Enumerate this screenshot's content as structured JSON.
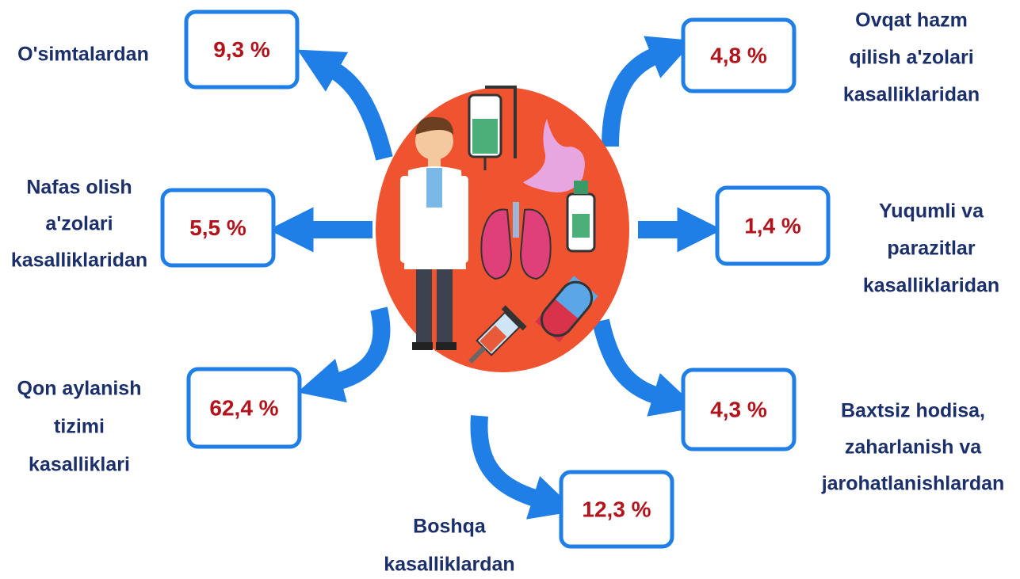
{
  "items": [
    {
      "label": [
        "O'simtalardan"
      ],
      "value": "9,3 %"
    },
    {
      "label": [
        "Nafas olish",
        "a'zolari",
        "kasalliklaridan"
      ],
      "value": "5,5 %"
    },
    {
      "label": [
        "Qon aylanish",
        "tizimi",
        "kasalliklari"
      ],
      "value": "62,4 %"
    },
    {
      "label": [
        "Boshqa",
        "kasalliklardan"
      ],
      "value": "12,3 %"
    },
    {
      "label": [
        "Ovqat hazm",
        "qilish a'zolari",
        "kasalliklaridan"
      ],
      "value": "4,8 %"
    },
    {
      "label": [
        "Yuqumli va",
        "parazitlar",
        "kasalliklaridan"
      ],
      "value": "1,4 %"
    },
    {
      "label": [
        "Baxtsiz hodisa,",
        "zaharlanish va",
        "jarohatlanishlardan"
      ],
      "value": "4,3 %"
    }
  ]
}
